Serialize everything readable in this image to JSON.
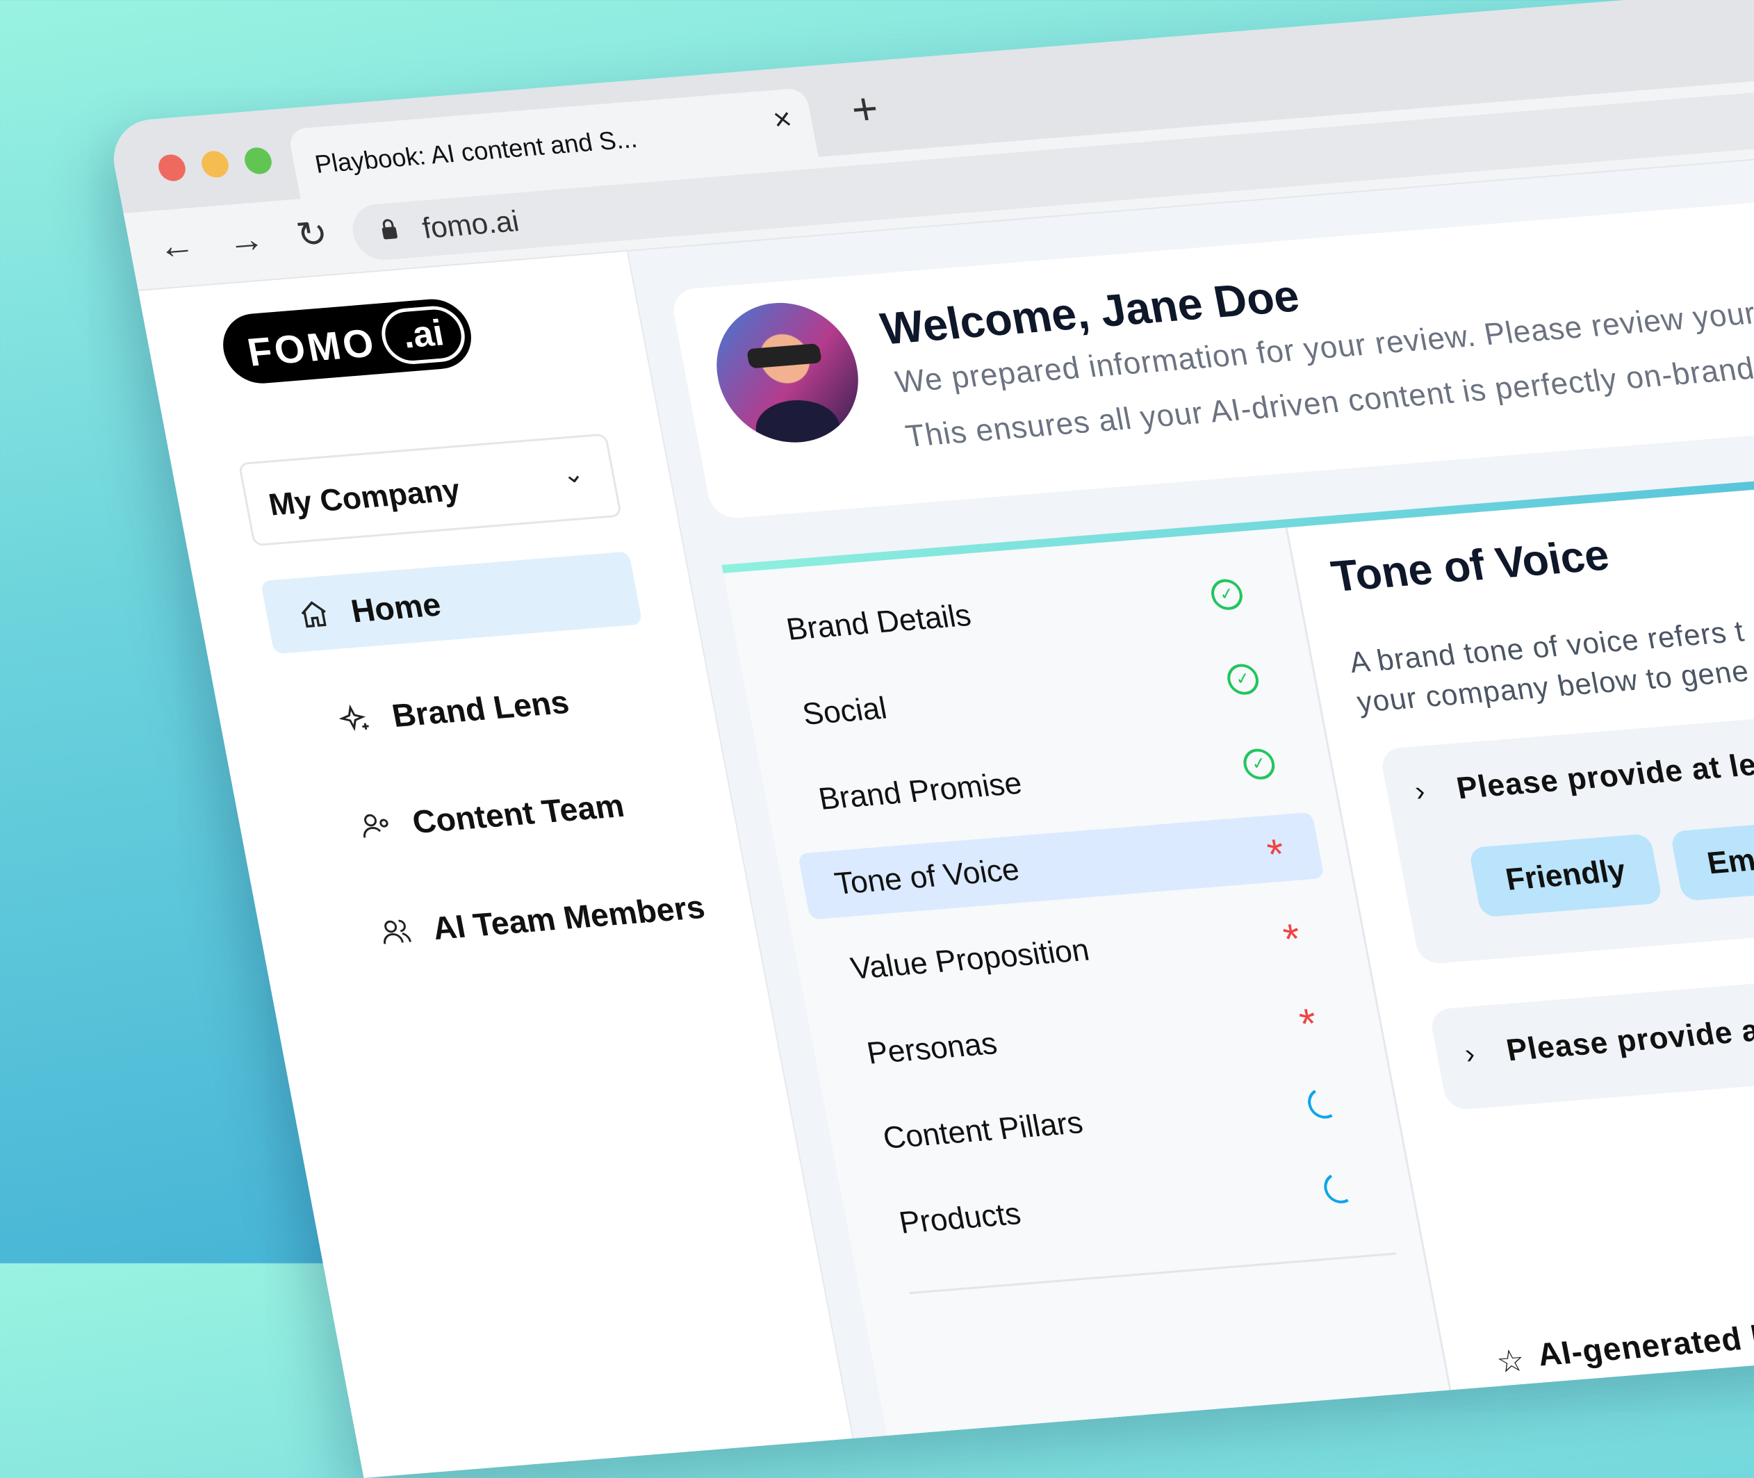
{
  "browser": {
    "tab_title": "Playbook: AI content and S...",
    "close_icon": "×",
    "new_tab_icon": "+",
    "back_icon": "←",
    "forward_icon": "→",
    "reload_icon": "↻",
    "url": "fomo.ai",
    "traffic_lights": [
      "#ee6a5f",
      "#f5bd4f",
      "#61c554"
    ]
  },
  "sidebar": {
    "logo": {
      "word": "FOMO",
      "suffix": ".ai"
    },
    "company": {
      "label": "My Company",
      "chevron": "⌄"
    },
    "items": [
      {
        "label": "Home",
        "icon": "home-icon",
        "active": true
      },
      {
        "label": "Brand Lens",
        "icon": "sparkles-icon"
      },
      {
        "label": "Content Team",
        "icon": "user-gear-icon"
      },
      {
        "label": "AI Team Members",
        "icon": "users-icon"
      }
    ]
  },
  "welcome": {
    "title": "Welcome, Jane Doe",
    "line1": "We prepared information for your review. Please review your",
    "line2": "This ensures all your AI-driven content is perfectly on-brand"
  },
  "steps": [
    {
      "label": "Brand Details",
      "status": "complete"
    },
    {
      "label": "Social",
      "status": "complete"
    },
    {
      "label": "Brand Promise",
      "status": "complete"
    },
    {
      "label": "Tone of Voice",
      "status": "required",
      "active": true
    },
    {
      "label": "Value Proposition",
      "status": "required"
    },
    {
      "label": "Personas",
      "status": "required"
    },
    {
      "label": "Content Pillars",
      "status": "loading"
    },
    {
      "label": "Products",
      "status": "loading"
    }
  ],
  "status_colors": {
    "complete": "#22c55e",
    "required": "#ef4444",
    "loading": "#0ea5e9"
  },
  "detail": {
    "title": "Tone of Voice",
    "desc1": "A brand tone of voice refers t",
    "desc2": "your company below to gene",
    "accordion1": {
      "label": "Please provide at lea",
      "chips": [
        "Friendly",
        "Em"
      ]
    },
    "accordion2": {
      "label": "Please provide at"
    },
    "ai_label": "AI-generated bran"
  }
}
